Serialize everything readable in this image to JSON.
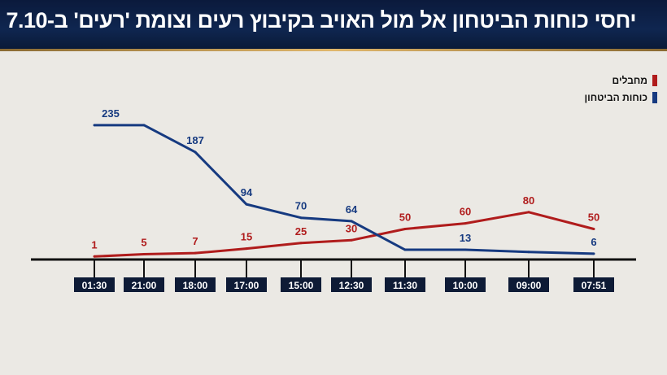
{
  "header": {
    "title": "יחסי כוחות הביטחון אל מול האויב בקיבוץ רעים וצומת 'רעים' ב-7.10"
  },
  "chart_data": {
    "type": "line",
    "title": "יחסי כוחות הביטחון אל מול האויב בקיבוץ רעים וצומת 'רעים' ב-7.10",
    "categories": [
      "01:30",
      "21:00",
      "18:00",
      "17:00",
      "15:00",
      "12:30",
      "11:30",
      "10:00",
      "09:00",
      "07:51"
    ],
    "series": [
      {
        "name": "מחבלים",
        "color": "#b01c1c",
        "values": [
          1,
          5,
          7,
          15,
          25,
          30,
          50,
          60,
          80,
          50
        ],
        "labels": [
          "1",
          "5",
          "7",
          "15",
          "25",
          "30",
          "50",
          "60",
          "80",
          "50"
        ]
      },
      {
        "name": "כוחות הביטחון",
        "color": "#163a80",
        "values": [
          235,
          235,
          187,
          94,
          70,
          64,
          13,
          13,
          9,
          6
        ],
        "labels": [
          "235",
          null,
          "187",
          "94",
          "70",
          "64",
          null,
          "13",
          null,
          "6"
        ]
      }
    ],
    "legend": "top-right",
    "grid": false,
    "ylim": [
      0,
      250
    ]
  }
}
